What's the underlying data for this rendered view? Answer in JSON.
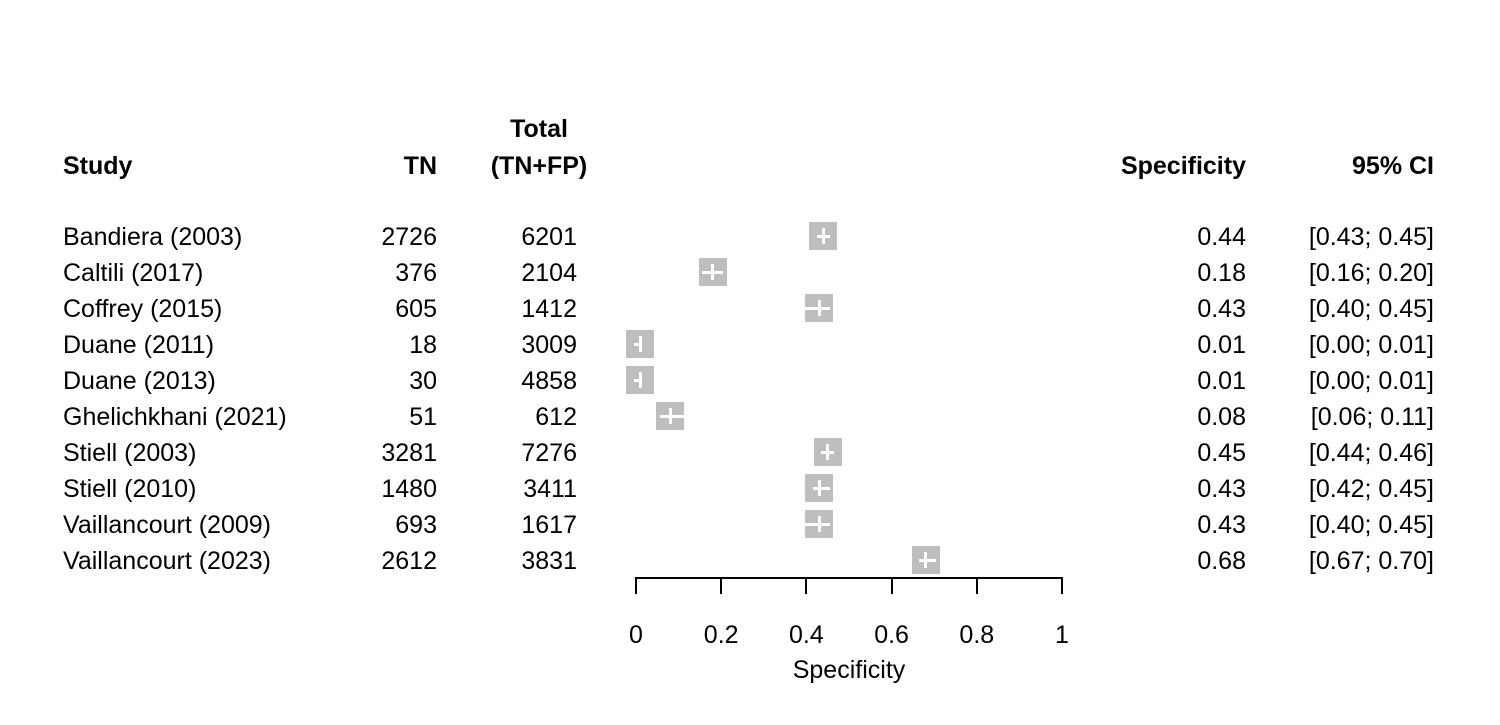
{
  "columns": {
    "study": "Study",
    "tn": "TN",
    "total_line1": "Total",
    "total_line2": "(TN+FP)",
    "specificity": "Specificity",
    "ci": "95% CI"
  },
  "chart_data": {
    "type": "forest",
    "xlabel": "Specificity",
    "x_axis": {
      "min": 0,
      "max": 1,
      "ticks": [
        0,
        0.2,
        0.4,
        0.6,
        0.8,
        1
      ],
      "tick_labels": [
        "0",
        "0.2",
        "0.4",
        "0.6",
        "0.8",
        "1"
      ]
    },
    "marker_color": "#bebebe",
    "background_color": "#ffffff",
    "studies": [
      {
        "study": "Bandiera (2003)",
        "tn": "2726",
        "total": "6201",
        "specificity": 0.44,
        "spec_label": "0.44",
        "ci_lo": 0.43,
        "ci_hi": 0.45,
        "ci_label": "[0.43; 0.45]"
      },
      {
        "study": "Caltili (2017)",
        "tn": "376",
        "total": "2104",
        "specificity": 0.18,
        "spec_label": "0.18",
        "ci_lo": 0.16,
        "ci_hi": 0.2,
        "ci_label": "[0.16; 0.20]"
      },
      {
        "study": "Coffrey (2015)",
        "tn": "605",
        "total": "1412",
        "specificity": 0.43,
        "spec_label": "0.43",
        "ci_lo": 0.4,
        "ci_hi": 0.45,
        "ci_label": "[0.40; 0.45]"
      },
      {
        "study": "Duane (2011)",
        "tn": "18",
        "total": "3009",
        "specificity": 0.01,
        "spec_label": "0.01",
        "ci_lo": 0.0,
        "ci_hi": 0.01,
        "ci_label": "[0.00; 0.01]"
      },
      {
        "study": "Duane (2013)",
        "tn": "30",
        "total": "4858",
        "specificity": 0.01,
        "spec_label": "0.01",
        "ci_lo": 0.0,
        "ci_hi": 0.01,
        "ci_label": "[0.00; 0.01]"
      },
      {
        "study": "Ghelichkhani (2021)",
        "tn": "51",
        "total": "612",
        "specificity": 0.08,
        "spec_label": "0.08",
        "ci_lo": 0.06,
        "ci_hi": 0.11,
        "ci_label": "[0.06; 0.11]"
      },
      {
        "study": "Stiell (2003)",
        "tn": "3281",
        "total": "7276",
        "specificity": 0.45,
        "spec_label": "0.45",
        "ci_lo": 0.44,
        "ci_hi": 0.46,
        "ci_label": "[0.44; 0.46]"
      },
      {
        "study": "Stiell (2010)",
        "tn": "1480",
        "total": "3411",
        "specificity": 0.43,
        "spec_label": "0.43",
        "ci_lo": 0.42,
        "ci_hi": 0.45,
        "ci_label": "[0.42; 0.45]"
      },
      {
        "study": "Vaillancourt (2009)",
        "tn": "693",
        "total": "1617",
        "specificity": 0.43,
        "spec_label": "0.43",
        "ci_lo": 0.4,
        "ci_hi": 0.45,
        "ci_label": "[0.40; 0.45]"
      },
      {
        "study": "Vaillancourt (2023)",
        "tn": "2612",
        "total": "3831",
        "specificity": 0.68,
        "spec_label": "0.68",
        "ci_lo": 0.67,
        "ci_hi": 0.7,
        "ci_label": "[0.67; 0.70]"
      }
    ]
  }
}
